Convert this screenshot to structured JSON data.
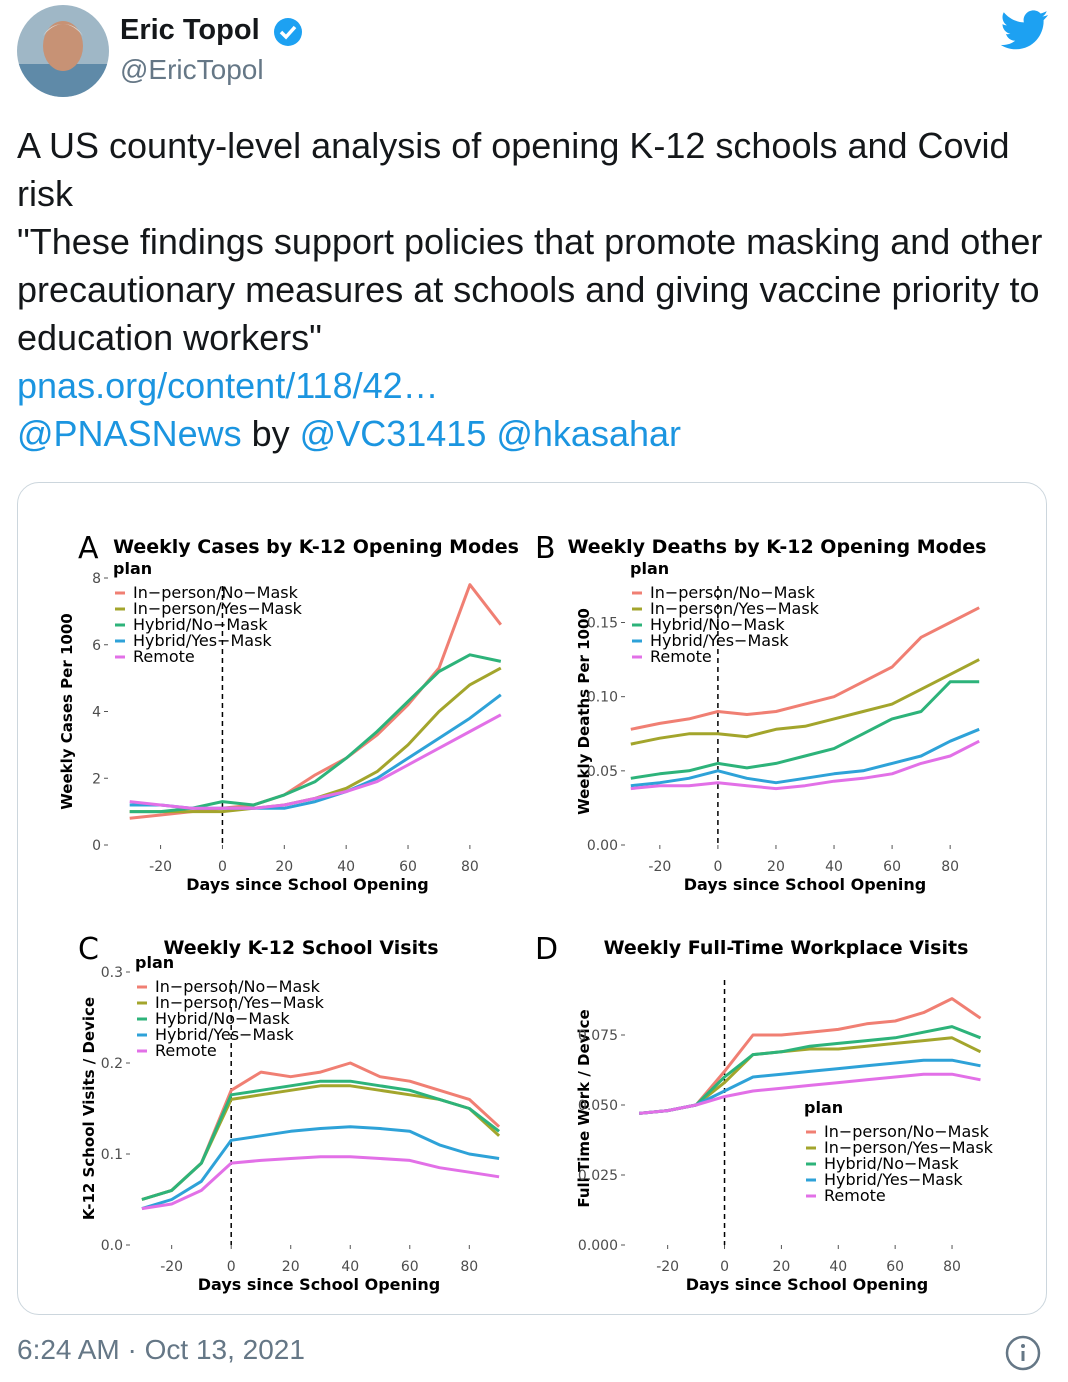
{
  "tweet": {
    "name": "Eric Topol",
    "handle": "@EricTopol",
    "text": [
      "A US county-level analysis of opening K-12 schools and Covid risk",
      "\"These findings support policies that promote masking and other precautionary measures at schools and giving vaccine priority to education workers\""
    ],
    "link": "pnas.org/content/118/42…",
    "mentions": [
      "@PNASNews",
      "by",
      "@VC31415",
      "@hkasahar"
    ],
    "timestamp": "6:24 AM · Oct 13, 2021"
  },
  "chart_data": [
    {
      "type": "line",
      "panel": "A",
      "title": "Weekly Cases by K-12 Opening Modes",
      "xlabel": "Days since School Opening",
      "ylabel": "Weekly Cases Per 1000",
      "legend_title": "plan",
      "legend": "top-left",
      "vline": 0,
      "x": [
        -30,
        -20,
        -10,
        0,
        10,
        20,
        30,
        40,
        50,
        60,
        70,
        80,
        90
      ],
      "xlim": [
        -37,
        92
      ],
      "xticks": [
        -20,
        0,
        20,
        40,
        60,
        80
      ],
      "ylim": [
        0,
        8
      ],
      "yticks": [
        0,
        2,
        4,
        6,
        8
      ],
      "series": [
        {
          "name": "In−person/No−Mask",
          "color": "#f07f73",
          "values": [
            0.8,
            0.9,
            1.0,
            1.1,
            1.2,
            1.5,
            2.1,
            2.6,
            3.3,
            4.2,
            5.3,
            7.8,
            6.6
          ]
        },
        {
          "name": "In−person/Yes−Mask",
          "color": "#a3a52c",
          "values": [
            1.0,
            1.0,
            1.0,
            1.0,
            1.1,
            1.2,
            1.4,
            1.7,
            2.2,
            3.0,
            4.0,
            4.8,
            5.3
          ]
        },
        {
          "name": "Hybrid/No−Mask",
          "color": "#2db37a",
          "values": [
            1.0,
            1.0,
            1.1,
            1.3,
            1.2,
            1.5,
            1.9,
            2.6,
            3.4,
            4.3,
            5.2,
            5.7,
            5.5
          ]
        },
        {
          "name": "Hybrid/Yes−Mask",
          "color": "#2ea2d8",
          "values": [
            1.2,
            1.2,
            1.1,
            1.1,
            1.1,
            1.1,
            1.3,
            1.6,
            2.0,
            2.6,
            3.2,
            3.8,
            4.5
          ]
        },
        {
          "name": "Remote",
          "color": "#e270e7",
          "values": [
            1.3,
            1.2,
            1.1,
            1.1,
            1.1,
            1.2,
            1.4,
            1.6,
            1.9,
            2.4,
            2.9,
            3.4,
            3.9
          ]
        }
      ]
    },
    {
      "type": "line",
      "panel": "B",
      "title": "Weekly Deaths by K-12 Opening Modes",
      "xlabel": "Days since School Opening",
      "ylabel": "Weekly Deaths Per 1000",
      "legend_title": "plan",
      "legend": "top-left",
      "vline": 0,
      "x": [
        -30,
        -20,
        -10,
        0,
        10,
        20,
        30,
        40,
        50,
        60,
        70,
        80,
        90
      ],
      "xlim": [
        -32,
        92
      ],
      "xticks": [
        -20,
        0,
        20,
        40,
        60,
        80
      ],
      "ylim": [
        0,
        0.18
      ],
      "yticks": [
        {
          "value": 0,
          "label": "0.00"
        },
        0.05,
        {
          "value": 0.1,
          "label": "0.10"
        },
        0.15
      ],
      "series": [
        {
          "name": "In−person/No−Mask",
          "color": "#f07f73",
          "values": [
            0.078,
            0.082,
            0.085,
            0.09,
            0.088,
            0.09,
            0.095,
            0.1,
            0.11,
            0.12,
            0.14,
            0.15,
            0.16
          ]
        },
        {
          "name": "In−person/Yes−Mask",
          "color": "#a3a52c",
          "values": [
            0.068,
            0.072,
            0.075,
            0.075,
            0.073,
            0.078,
            0.08,
            0.085,
            0.09,
            0.095,
            0.105,
            0.115,
            0.125
          ]
        },
        {
          "name": "Hybrid/No−Mask",
          "color": "#2db37a",
          "values": [
            0.045,
            0.048,
            0.05,
            0.055,
            0.052,
            0.055,
            0.06,
            0.065,
            0.075,
            0.085,
            0.09,
            0.11,
            0.11
          ]
        },
        {
          "name": "Hybrid/Yes−Mask",
          "color": "#2ea2d8",
          "values": [
            0.04,
            0.042,
            0.045,
            0.05,
            0.045,
            0.042,
            0.045,
            0.048,
            0.05,
            0.055,
            0.06,
            0.07,
            0.078
          ]
        },
        {
          "name": "Remote",
          "color": "#e270e7",
          "values": [
            0.038,
            0.04,
            0.04,
            0.042,
            0.04,
            0.038,
            0.04,
            0.043,
            0.045,
            0.048,
            0.055,
            0.06,
            0.07
          ]
        }
      ]
    },
    {
      "type": "line",
      "panel": "C",
      "title": "Weekly K-12 School Visits",
      "xlabel": "Days since School Opening",
      "ylabel": "K-12 School Visits / Device",
      "legend_title": "plan",
      "legend": "top-left",
      "vline": 0,
      "x": [
        -30,
        -20,
        -10,
        0,
        10,
        20,
        30,
        40,
        50,
        60,
        70,
        80,
        90
      ],
      "xlim": [
        -34,
        93
      ],
      "xticks": [
        -20,
        0,
        20,
        40,
        60,
        80
      ],
      "ylim": [
        0,
        0.3
      ],
      "yticks": [
        {
          "value": 0,
          "label": "0.0"
        },
        0.1,
        0.2,
        0.3
      ],
      "series": [
        {
          "name": "In−person/No−Mask",
          "color": "#f07f73",
          "values": [
            0.05,
            0.06,
            0.09,
            0.17,
            0.19,
            0.185,
            0.19,
            0.2,
            0.185,
            0.18,
            0.17,
            0.16,
            0.13
          ]
        },
        {
          "name": "In−person/Yes−Mask",
          "color": "#a3a52c",
          "values": [
            0.05,
            0.06,
            0.09,
            0.16,
            0.165,
            0.17,
            0.175,
            0.175,
            0.17,
            0.165,
            0.16,
            0.15,
            0.12
          ]
        },
        {
          "name": "Hybrid/No−Mask",
          "color": "#2db37a",
          "values": [
            0.05,
            0.06,
            0.09,
            0.165,
            0.17,
            0.175,
            0.18,
            0.18,
            0.175,
            0.17,
            0.16,
            0.15,
            0.125
          ]
        },
        {
          "name": "Hybrid/Yes−Mask",
          "color": "#2ea2d8",
          "values": [
            0.04,
            0.05,
            0.07,
            0.115,
            0.12,
            0.125,
            0.128,
            0.13,
            0.128,
            0.125,
            0.11,
            0.1,
            0.095
          ]
        },
        {
          "name": "Remote",
          "color": "#e270e7",
          "values": [
            0.04,
            0.045,
            0.06,
            0.09,
            0.093,
            0.095,
            0.097,
            0.097,
            0.095,
            0.093,
            0.085,
            0.08,
            0.075
          ]
        }
      ]
    },
    {
      "type": "line",
      "panel": "D",
      "title": "Weekly Full-Time Workplace Visits",
      "xlabel": "Days since School Opening",
      "ylabel": "Full Time Work / Device",
      "legend_title": "plan",
      "legend": "bottom-right",
      "vline": 0,
      "x": [
        -30,
        -20,
        -10,
        0,
        10,
        20,
        30,
        40,
        50,
        60,
        70,
        80,
        90
      ],
      "xlim": [
        -35,
        93
      ],
      "xticks": [
        -20,
        0,
        20,
        40,
        60,
        80
      ],
      "ylim": [
        0,
        0.0975
      ],
      "yticks": [
        {
          "value": 0,
          "label": "0.000"
        },
        0.025,
        {
          "value": 0.05,
          "label": "0.050"
        },
        0.075
      ],
      "series": [
        {
          "name": "In−person/No−Mask",
          "color": "#f07f73",
          "values": [
            0.047,
            0.048,
            0.05,
            0.062,
            0.075,
            0.075,
            0.076,
            0.077,
            0.079,
            0.08,
            0.083,
            0.088,
            0.081
          ]
        },
        {
          "name": "In−person/Yes−Mask",
          "color": "#a3a52c",
          "values": [
            0.047,
            0.048,
            0.05,
            0.058,
            0.068,
            0.069,
            0.07,
            0.07,
            0.071,
            0.072,
            0.073,
            0.074,
            0.069
          ]
        },
        {
          "name": "Hybrid/No−Mask",
          "color": "#2db37a",
          "values": [
            0.047,
            0.048,
            0.05,
            0.06,
            0.068,
            0.069,
            0.071,
            0.072,
            0.073,
            0.074,
            0.076,
            0.078,
            0.074
          ]
        },
        {
          "name": "Hybrid/Yes−Mask",
          "color": "#2ea2d8",
          "values": [
            0.047,
            0.048,
            0.05,
            0.055,
            0.06,
            0.061,
            0.062,
            0.063,
            0.064,
            0.065,
            0.066,
            0.066,
            0.064
          ]
        },
        {
          "name": "Remote",
          "color": "#e270e7",
          "values": [
            0.047,
            0.048,
            0.05,
            0.053,
            0.055,
            0.056,
            0.057,
            0.058,
            0.059,
            0.06,
            0.061,
            0.061,
            0.059
          ]
        }
      ]
    }
  ]
}
